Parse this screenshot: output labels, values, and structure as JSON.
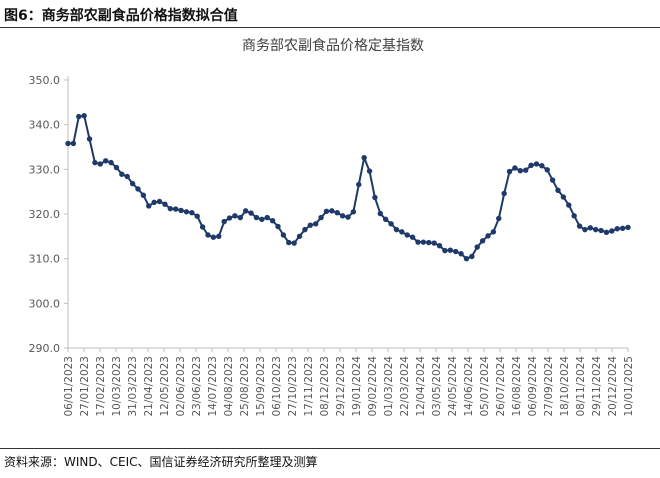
{
  "figure_label": "图6：商务部农副食品价格指数拟合值",
  "source": "资料来源：WIND、CEIC、国信证券经济研究所整理及测算",
  "colors": {
    "line": "#1f3a68",
    "axis": "#bfbfbf",
    "text": "#595959"
  },
  "chart_data": {
    "type": "line",
    "title": "商务部农副食品价格定基指数",
    "xlabel": "",
    "ylabel": "",
    "ylim": [
      290,
      350
    ],
    "grid": false,
    "legend": "none",
    "yticks": [
      "290.0",
      "300.0",
      "310.0",
      "320.0",
      "330.0",
      "340.0",
      "350.0"
    ],
    "xticks": [
      "06/01/2023",
      "27/01/2023",
      "17/02/2023",
      "10/03/2023",
      "31/03/2023",
      "21/04/2023",
      "12/05/2023",
      "02/06/2023",
      "23/06/2023",
      "14/07/2023",
      "04/08/2023",
      "25/08/2023",
      "15/09/2023",
      "06/10/2023",
      "27/10/2023",
      "17/11/2023",
      "08/12/2023",
      "29/12/2023",
      "19/01/2024",
      "09/02/2024",
      "01/03/2024",
      "22/03/2024",
      "12/04/2024",
      "03/05/2024",
      "24/05/2024",
      "14/06/2024",
      "05/07/2024",
      "26/07/2024",
      "16/08/2024",
      "06/09/2024",
      "27/09/2024",
      "18/10/2024",
      "08/11/2024",
      "29/11/2024",
      "20/12/2024",
      "10/01/2025"
    ],
    "series": [
      {
        "values": [
          335.8,
          335.8,
          341.8,
          342.0,
          336.8,
          331.5,
          331.2,
          331.9,
          331.5,
          330.4,
          328.9,
          328.4,
          326.8,
          325.6,
          324.2,
          321.8,
          322.6,
          322.8,
          322.2,
          321.2,
          321.1,
          320.8,
          320.5,
          320.3,
          319.5,
          317.1,
          315.3,
          314.8,
          315.0,
          318.3,
          319.1,
          319.6,
          319.2,
          320.7,
          320.2,
          319.2,
          318.8,
          319.2,
          318.5,
          317.2,
          315.3,
          313.6,
          313.5,
          315.0,
          316.5,
          317.5,
          317.8,
          319.2,
          320.6,
          320.7,
          320.3,
          319.6,
          319.3,
          320.5,
          326.6,
          332.6,
          329.6,
          323.7,
          320.1,
          318.8,
          317.8,
          316.5,
          316.0,
          315.3,
          314.8,
          313.7,
          313.7,
          313.6,
          313.5,
          312.9,
          311.8,
          311.9,
          311.6,
          311.1,
          310.0,
          310.5,
          312.6,
          314.0,
          315.1,
          316.0,
          319.0,
          324.6,
          329.5,
          330.3,
          329.7,
          329.8,
          330.9,
          331.2,
          330.8,
          329.9,
          327.6,
          325.3,
          323.8,
          322.0,
          319.6,
          317.3,
          316.5,
          316.9,
          316.5,
          316.3,
          315.9,
          316.2,
          316.7,
          316.8,
          317.0
        ]
      }
    ]
  }
}
